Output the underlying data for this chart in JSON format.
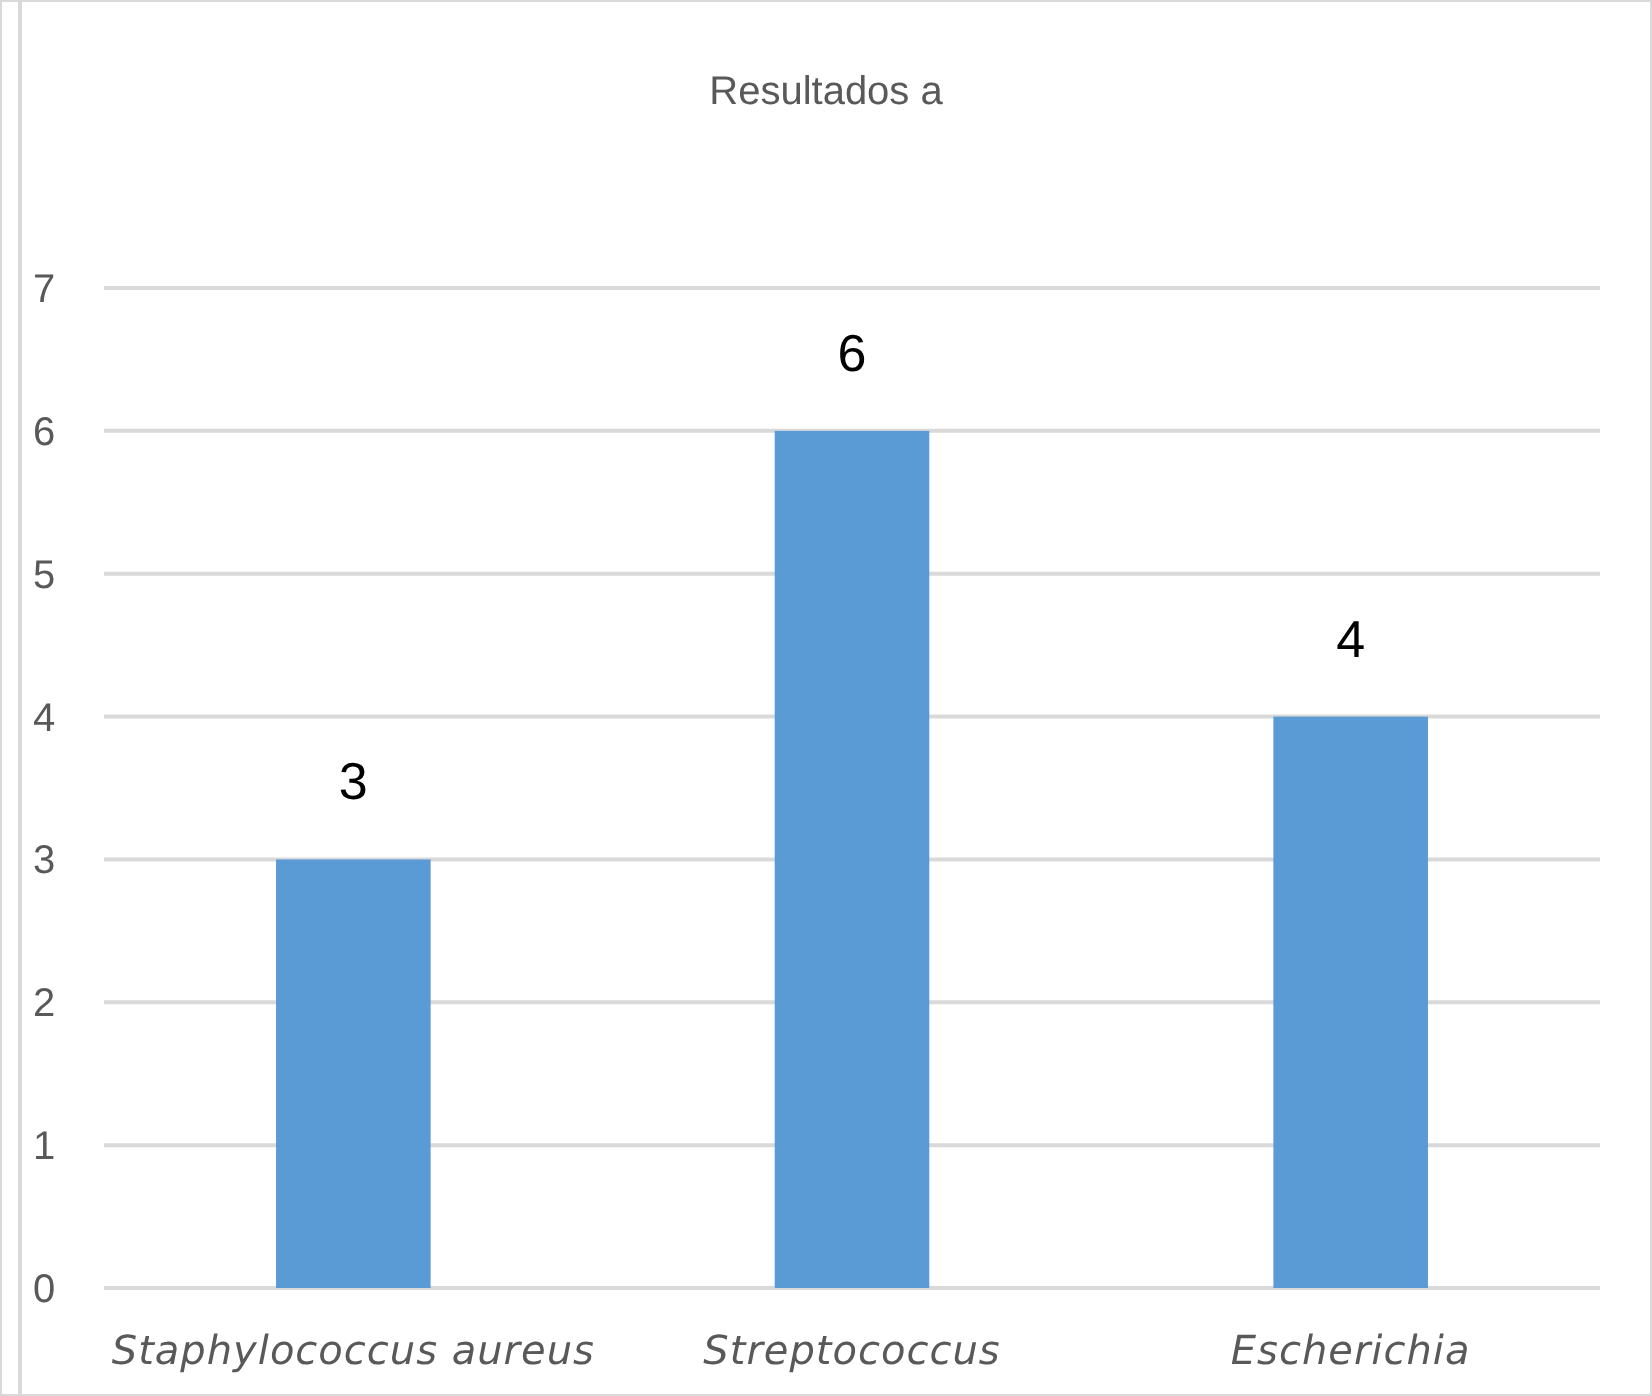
{
  "chart_data": {
    "type": "bar",
    "title": "Resultados a",
    "categories": [
      "Staphylococcus aureus",
      "Streptococcus",
      "Escherichia"
    ],
    "values": [
      3,
      6,
      4
    ],
    "data_labels": true,
    "color": "#5b9bd5",
    "ylim": [
      0,
      7
    ],
    "yticks": [
      0,
      1,
      2,
      3,
      4,
      5,
      6,
      7
    ],
    "grid": "y"
  }
}
